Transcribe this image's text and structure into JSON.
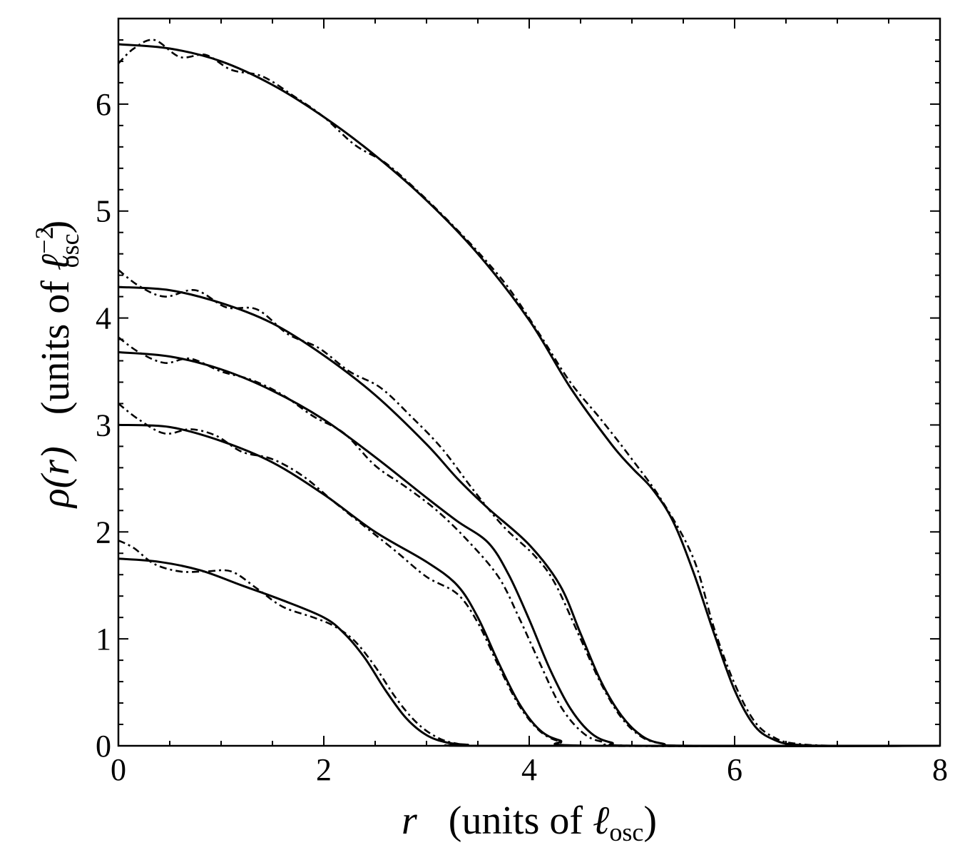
{
  "chart_data": {
    "type": "line",
    "xlabel": {
      "symbol": "r",
      "units_text": "(units of ",
      "ell": "ℓ",
      "subscript": "osc",
      "close": ")"
    },
    "ylabel": {
      "symbol": "ρ(r)",
      "units_text": "(units of ",
      "ell": "ℓ",
      "superscript": "−2",
      "subscript": "osc",
      "close": ")"
    },
    "xlim": [
      0,
      8
    ],
    "ylim": [
      0,
      6.8
    ],
    "xticks": [
      0,
      2,
      4,
      6,
      8
    ],
    "xtick_labels": [
      "0",
      "2",
      "4",
      "6",
      "8"
    ],
    "yticks": [
      0,
      1,
      2,
      3,
      4,
      5,
      6
    ],
    "ytick_labels": [
      "0",
      "1",
      "2",
      "3",
      "4",
      "5",
      "6"
    ],
    "grid": false,
    "legend": "none",
    "series": [
      {
        "style": "solid",
        "x": [
          0,
          0.4,
          0.8,
          1.2,
          1.6,
          2.0,
          2.2,
          2.4,
          2.6,
          2.8,
          3.0,
          3.2,
          3.4,
          3.6
        ],
        "y": [
          1.75,
          1.72,
          1.64,
          1.5,
          1.36,
          1.2,
          1.05,
          0.82,
          0.52,
          0.26,
          0.1,
          0.03,
          0.01,
          0.0
        ]
      },
      {
        "style": "dashdot",
        "x": [
          0,
          0.15,
          0.35,
          0.6,
          0.85,
          1.1,
          1.35,
          1.6,
          1.9,
          2.1,
          2.3,
          2.5,
          2.7,
          2.9,
          3.1,
          3.3,
          3.6
        ],
        "y": [
          1.92,
          1.85,
          1.7,
          1.63,
          1.63,
          1.63,
          1.47,
          1.3,
          1.2,
          1.12,
          0.98,
          0.74,
          0.45,
          0.22,
          0.08,
          0.02,
          0.0
        ]
      },
      {
        "style": "solid",
        "x": [
          0,
          0.5,
          1.0,
          1.5,
          2.0,
          2.5,
          3.0,
          3.3,
          3.5,
          3.7,
          3.9,
          4.1,
          4.3,
          4.6
        ],
        "y": [
          3.0,
          2.98,
          2.85,
          2.65,
          2.35,
          2.0,
          1.72,
          1.5,
          1.2,
          0.78,
          0.4,
          0.15,
          0.05,
          0.0
        ]
      },
      {
        "style": "dashdot",
        "x": [
          0,
          0.2,
          0.45,
          0.7,
          0.95,
          1.2,
          1.5,
          1.8,
          2.1,
          2.4,
          2.7,
          3.0,
          3.3,
          3.5,
          3.7,
          3.9,
          4.1,
          4.3,
          4.6
        ],
        "y": [
          3.2,
          3.05,
          2.92,
          2.96,
          2.9,
          2.75,
          2.68,
          2.52,
          2.28,
          2.05,
          1.82,
          1.58,
          1.42,
          1.15,
          0.75,
          0.38,
          0.14,
          0.04,
          0.0
        ]
      },
      {
        "style": "solid",
        "x": [
          0,
          0.5,
          1.0,
          1.5,
          2.0,
          2.5,
          3.0,
          3.3,
          3.6,
          3.8,
          4.0,
          4.2,
          4.4,
          4.6,
          4.8,
          5.1
        ],
        "y": [
          3.68,
          3.64,
          3.52,
          3.32,
          3.05,
          2.7,
          2.32,
          2.1,
          1.9,
          1.6,
          1.18,
          0.72,
          0.35,
          0.12,
          0.03,
          0.0
        ]
      },
      {
        "style": "dashdot",
        "x": [
          0,
          0.2,
          0.45,
          0.7,
          1.0,
          1.3,
          1.6,
          1.9,
          2.2,
          2.5,
          2.8,
          3.1,
          3.4,
          3.7,
          3.9,
          4.1,
          4.3,
          4.5,
          4.7,
          5.1
        ],
        "y": [
          3.82,
          3.68,
          3.58,
          3.62,
          3.5,
          3.42,
          3.28,
          3.08,
          2.92,
          2.62,
          2.42,
          2.2,
          1.92,
          1.58,
          1.2,
          0.78,
          0.38,
          0.14,
          0.04,
          0.0
        ]
      },
      {
        "style": "solid",
        "x": [
          0,
          0.5,
          1.0,
          1.5,
          2.0,
          2.5,
          3.0,
          3.3,
          3.6,
          4.0,
          4.3,
          4.5,
          4.7,
          4.9,
          5.1,
          5.3,
          5.6
        ],
        "y": [
          4.29,
          4.26,
          4.14,
          3.95,
          3.65,
          3.28,
          2.82,
          2.5,
          2.22,
          1.88,
          1.5,
          1.05,
          0.6,
          0.28,
          0.09,
          0.02,
          0.0
        ]
      },
      {
        "style": "dashdot",
        "x": [
          0,
          0.2,
          0.45,
          0.75,
          1.05,
          1.35,
          1.65,
          1.95,
          2.25,
          2.55,
          2.85,
          3.15,
          3.45,
          3.75,
          4.05,
          4.25,
          4.5,
          4.7,
          4.9,
          5.1,
          5.3,
          5.6
        ],
        "y": [
          4.45,
          4.3,
          4.2,
          4.26,
          4.1,
          4.08,
          3.85,
          3.72,
          3.5,
          3.35,
          3.08,
          2.78,
          2.4,
          2.05,
          1.78,
          1.52,
          1.0,
          0.58,
          0.26,
          0.08,
          0.02,
          0.0
        ]
      },
      {
        "style": "solid",
        "x": [
          0,
          0.5,
          1.0,
          1.5,
          2.0,
          2.5,
          3.0,
          3.5,
          4.0,
          4.4,
          4.8,
          5.0,
          5.2,
          5.4,
          5.6,
          5.8,
          6.0,
          6.2,
          6.4,
          6.6,
          7.0
        ],
        "y": [
          6.56,
          6.52,
          6.4,
          6.18,
          5.88,
          5.52,
          5.1,
          4.6,
          3.98,
          3.35,
          2.82,
          2.6,
          2.4,
          2.1,
          1.62,
          1.05,
          0.52,
          0.18,
          0.05,
          0.01,
          0.0
        ]
      },
      {
        "style": "dashdot",
        "x": [
          0,
          0.15,
          0.35,
          0.6,
          0.85,
          1.1,
          1.4,
          1.7,
          2.0,
          2.3,
          2.6,
          2.9,
          3.2,
          3.5,
          3.8,
          4.1,
          4.4,
          4.7,
          5.0,
          5.3,
          5.6,
          5.8,
          6.0,
          6.2,
          6.4,
          6.6,
          7.0
        ],
        "y": [
          6.38,
          6.52,
          6.6,
          6.44,
          6.46,
          6.32,
          6.26,
          6.08,
          5.88,
          5.62,
          5.45,
          5.2,
          4.92,
          4.62,
          4.28,
          3.85,
          3.4,
          3.05,
          2.68,
          2.28,
          1.75,
          1.1,
          0.58,
          0.22,
          0.07,
          0.02,
          0.0
        ]
      }
    ]
  }
}
